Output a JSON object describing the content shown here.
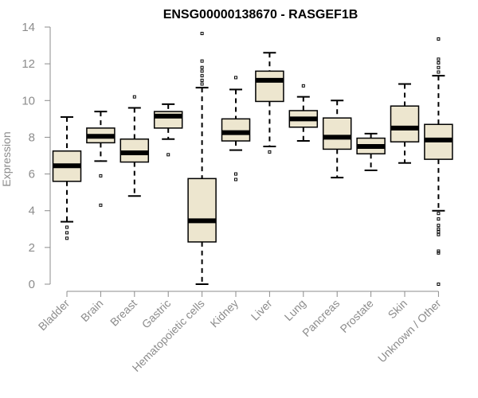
{
  "chart_data": {
    "type": "box",
    "title": "ENSG00000138670 - RASGEF1B",
    "ylabel": "Expression",
    "xlabel": "",
    "ylim": [
      0,
      14
    ],
    "yticks": [
      0,
      2,
      4,
      6,
      8,
      10,
      12,
      14
    ],
    "grid": false,
    "legend": "none",
    "colors": {
      "box_fill": "#ede6cf",
      "stroke": "#000000",
      "axis_text": "#8c8c8c"
    },
    "categories": [
      "Bladder",
      "Brain",
      "Breast",
      "Gastric",
      "Hematopoietic cells",
      "Kidney",
      "Liver",
      "Lung",
      "Pancreas",
      "Prostate",
      "Skin",
      "Unknown / Other"
    ],
    "boxes": [
      {
        "category": "Bladder",
        "min": 3.4,
        "q1": 5.6,
        "median": 6.45,
        "q3": 7.25,
        "max": 9.1,
        "outliers": [
          3.1,
          2.8,
          2.5
        ]
      },
      {
        "category": "Brain",
        "min": 6.7,
        "q1": 7.7,
        "median": 8.05,
        "q3": 8.5,
        "max": 9.4,
        "outliers": [
          5.9,
          4.3
        ]
      },
      {
        "category": "Breast",
        "min": 4.8,
        "q1": 6.65,
        "median": 7.15,
        "q3": 7.9,
        "max": 9.6,
        "outliers": [
          10.2
        ]
      },
      {
        "category": "Gastric",
        "min": 7.9,
        "q1": 8.5,
        "median": 9.15,
        "q3": 9.4,
        "max": 9.8,
        "outliers": [
          7.05
        ]
      },
      {
        "category": "Hematopoietic cells",
        "min": 0.0,
        "q1": 2.3,
        "median": 3.45,
        "q3": 5.75,
        "max": 10.7,
        "outliers": [
          10.9,
          11.1,
          11.35,
          11.6,
          11.8,
          12.15,
          13.65
        ]
      },
      {
        "category": "Kidney",
        "min": 7.3,
        "q1": 7.8,
        "median": 8.25,
        "q3": 9.0,
        "max": 10.6,
        "outliers": [
          11.25,
          6.0,
          5.7
        ]
      },
      {
        "category": "Liver",
        "min": 7.5,
        "q1": 9.95,
        "median": 11.1,
        "q3": 11.6,
        "max": 12.6,
        "outliers": [
          7.2
        ]
      },
      {
        "category": "Lung",
        "min": 7.8,
        "q1": 8.55,
        "median": 9.0,
        "q3": 9.45,
        "max": 10.2,
        "outliers": [
          10.8
        ]
      },
      {
        "category": "Pancreas",
        "min": 5.8,
        "q1": 7.35,
        "median": 8.0,
        "q3": 9.05,
        "max": 10.0,
        "outliers": []
      },
      {
        "category": "Prostate",
        "min": 6.2,
        "q1": 7.1,
        "median": 7.5,
        "q3": 7.95,
        "max": 8.2,
        "outliers": []
      },
      {
        "category": "Skin",
        "min": 6.6,
        "q1": 7.75,
        "median": 8.5,
        "q3": 9.7,
        "max": 10.9,
        "outliers": []
      },
      {
        "category": "Unknown / Other",
        "min": 4.0,
        "q1": 6.8,
        "median": 7.85,
        "q3": 8.7,
        "max": 11.35,
        "outliers": [
          11.55,
          11.8,
          12.05,
          12.25,
          13.35,
          3.85,
          3.55,
          3.2,
          3.0,
          2.85,
          2.7,
          1.8,
          1.7,
          0.0
        ]
      }
    ]
  }
}
